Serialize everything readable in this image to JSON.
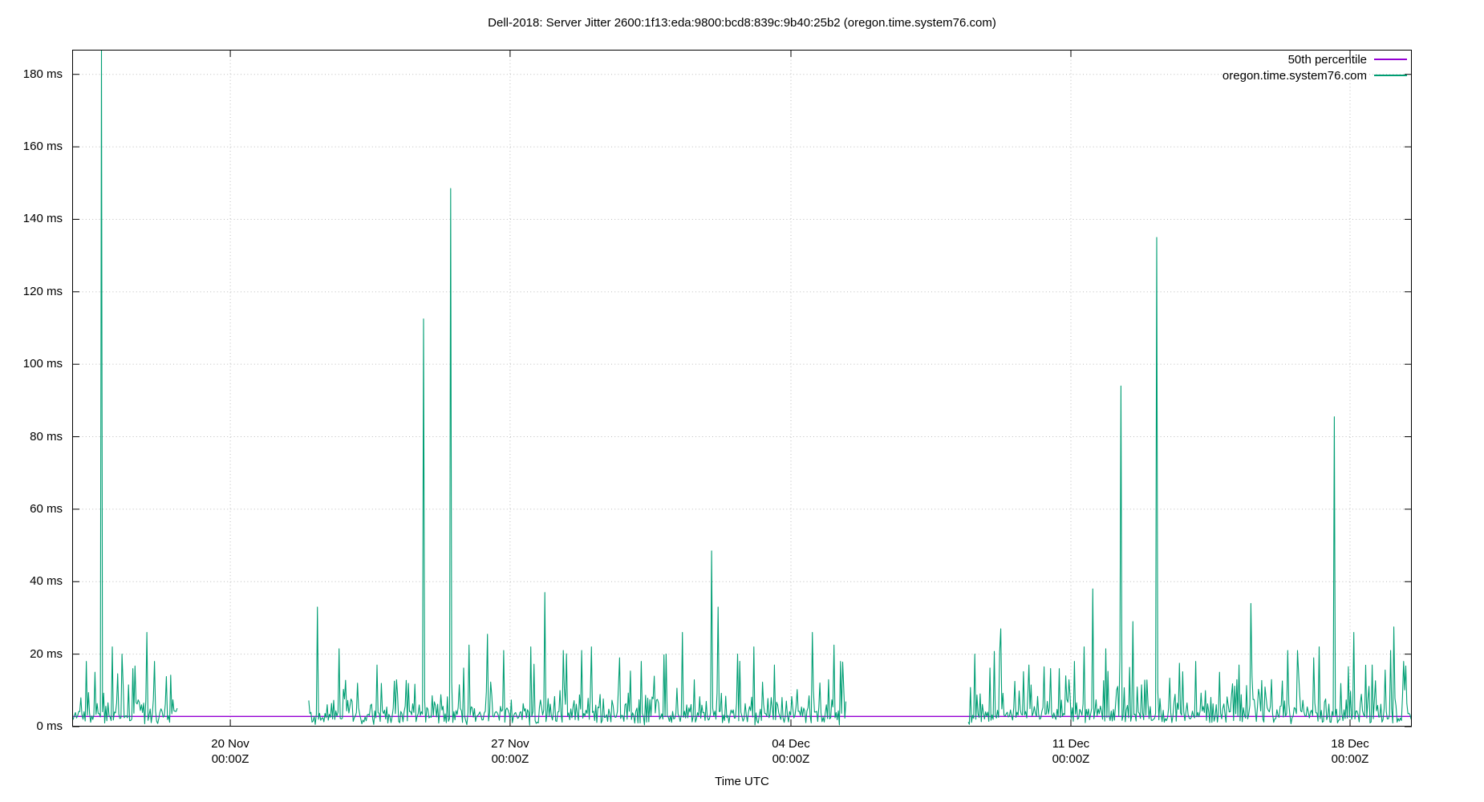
{
  "chart_data": {
    "type": "line",
    "title": "Dell-2018: Server Jitter 2600:1f13:eda:9800:bcd8:839c:9b40:25b2 (oregon.time.system76.com)",
    "xlabel": "Time UTC",
    "unit": "ms",
    "y_axis": {
      "min": 0,
      "max_visible": 186.8,
      "tick_step": 20,
      "tick_labels": [
        "0 ms",
        "20 ms",
        "40 ms",
        "60 ms",
        "80 ms",
        "100 ms",
        "120 ms",
        "140 ms",
        "160 ms",
        "180 ms"
      ],
      "grid": true
    },
    "x_axis": {
      "start_approx": "16 Nov 01:00Z",
      "end_approx": "19 Dec 13:00Z",
      "grid": true,
      "ticks": [
        {
          "line1": "20 Nov",
          "line2": "00:00Z",
          "frac": 0.118
        },
        {
          "line1": "27 Nov",
          "line2": "00:00Z",
          "frac": 0.3269
        },
        {
          "line1": "04 Dec",
          "line2": "00:00Z",
          "frac": 0.5365
        },
        {
          "line1": "11 Dec",
          "line2": "00:00Z",
          "frac": 0.7455
        },
        {
          "line1": "18 Dec",
          "line2": "00:00Z",
          "frac": 0.9539
        }
      ]
    },
    "legend": {
      "position": "top-right",
      "entries": [
        {
          "label": "50th percentile",
          "color": "#9400d3"
        },
        {
          "label": "oregon.time.system76.com",
          "color": "#009e73"
        }
      ]
    },
    "series": [
      {
        "name": "50th percentile",
        "type": "hline",
        "value_ms": 2.8,
        "color": "#9400d3",
        "spans": "full x range"
      },
      {
        "name": "oregon.time.system76.com",
        "type": "noisy-line",
        "color": "#009e73",
        "baseline_ms": {
          "typical_min": 0.8,
          "median": 2.8,
          "typical_max": 8,
          "frequent_minor_spikes_to": 22
        },
        "segments": [
          {
            "x_frac": [
              0.0,
              0.079
            ],
            "from": "16 Nov 01:00Z",
            "to": "18 Nov ~16:00Z"
          },
          {
            "x_frac": [
              0.1766,
              0.5778
            ],
            "from": "21 Nov ~23:00Z",
            "to": "05 Dec ~09:00Z"
          },
          {
            "x_frac": [
              0.6689,
              1.0
            ],
            "from": "08 Dec ~10:00Z",
            "to": "19 Dec 13:00Z"
          }
        ],
        "data_gaps": [
          {
            "from": "18 Nov ~16:00Z",
            "to": "21 Nov ~23:00Z",
            "x_frac": [
              0.079,
              0.1766
            ]
          },
          {
            "from": "05 Dec ~09:00Z",
            "to": "08 Dec ~10:00Z",
            "x_frac": [
              0.5778,
              0.6689
            ]
          }
        ],
        "spikes": [
          {
            "x_frac": 0.0108,
            "ms": 18
          },
          {
            "x_frac": 0.0168,
            "ms": 15
          },
          {
            "x_frac": 0.0222,
            "ms": 200,
            "clipped_above_axis": true,
            "time": "16 Nov ~19:00Z"
          },
          {
            "x_frac": 0.0299,
            "ms": 22
          },
          {
            "x_frac": 0.0371,
            "ms": 20
          },
          {
            "x_frac": 0.0449,
            "ms": 16
          },
          {
            "x_frac": 0.0557,
            "ms": 26,
            "time": "17 Nov ~22:00Z"
          },
          {
            "x_frac": 0.0617,
            "ms": 18
          },
          {
            "x_frac": 0.1832,
            "ms": 33,
            "time": "22 Nov ~04:00Z"
          },
          {
            "x_frac": 0.1994,
            "ms": 21.5
          },
          {
            "x_frac": 0.2275,
            "ms": 17
          },
          {
            "x_frac": 0.2623,
            "ms": 112.5,
            "time": "24 Nov ~20:00Z"
          },
          {
            "x_frac": 0.2826,
            "ms": 148.5,
            "time": "25 Nov ~12:00Z"
          },
          {
            "x_frac": 0.2964,
            "ms": 22.5
          },
          {
            "x_frac": 0.3102,
            "ms": 25.5
          },
          {
            "x_frac": 0.3222,
            "ms": 21
          },
          {
            "x_frac": 0.3425,
            "ms": 22
          },
          {
            "x_frac": 0.3527,
            "ms": 37,
            "time": "27 Nov ~20:00Z"
          },
          {
            "x_frac": 0.3665,
            "ms": 21
          },
          {
            "x_frac": 0.3802,
            "ms": 21
          },
          {
            "x_frac": 0.3874,
            "ms": 22
          },
          {
            "x_frac": 0.4084,
            "ms": 19
          },
          {
            "x_frac": 0.4251,
            "ms": 18
          },
          {
            "x_frac": 0.4431,
            "ms": 20
          },
          {
            "x_frac": 0.4557,
            "ms": 26
          },
          {
            "x_frac": 0.4772,
            "ms": 48.5,
            "time": "02 Dec ~00:00Z"
          },
          {
            "x_frac": 0.482,
            "ms": 33
          },
          {
            "x_frac": 0.497,
            "ms": 20
          },
          {
            "x_frac": 0.509,
            "ms": 22
          },
          {
            "x_frac": 0.5246,
            "ms": 17
          },
          {
            "x_frac": 0.5521,
            "ms": 26,
            "time": "04 Dec ~12:00Z"
          },
          {
            "x_frac": 0.5689,
            "ms": 22.5
          },
          {
            "x_frac": 0.5737,
            "ms": 18
          },
          {
            "x_frac": 0.6737,
            "ms": 20
          },
          {
            "x_frac": 0.6928,
            "ms": 27,
            "time": "09 Dec ~06:00Z"
          },
          {
            "x_frac": 0.7138,
            "ms": 17
          },
          {
            "x_frac": 0.7257,
            "ms": 16.5
          },
          {
            "x_frac": 0.7365,
            "ms": 16
          },
          {
            "x_frac": 0.7485,
            "ms": 18
          },
          {
            "x_frac": 0.7557,
            "ms": 22
          },
          {
            "x_frac": 0.7617,
            "ms": 38,
            "time": "11 Dec ~13:00Z"
          },
          {
            "x_frac": 0.7713,
            "ms": 21.5
          },
          {
            "x_frac": 0.7832,
            "ms": 94,
            "time": "12 Dec ~06:00Z"
          },
          {
            "x_frac": 0.7916,
            "ms": 29
          },
          {
            "x_frac": 0.8096,
            "ms": 135,
            "time": "13 Dec ~03:00Z"
          },
          {
            "x_frac": 0.8263,
            "ms": 17.5
          },
          {
            "x_frac": 0.8383,
            "ms": 18
          },
          {
            "x_frac": 0.8563,
            "ms": 15
          },
          {
            "x_frac": 0.8713,
            "ms": 17
          },
          {
            "x_frac": 0.8802,
            "ms": 34,
            "time": "15 Dec ~12:00Z"
          },
          {
            "x_frac": 0.8952,
            "ms": 13
          },
          {
            "x_frac": 0.9072,
            "ms": 21
          },
          {
            "x_frac": 0.915,
            "ms": 21
          },
          {
            "x_frac": 0.9269,
            "ms": 19
          },
          {
            "x_frac": 0.9311,
            "ms": 22
          },
          {
            "x_frac": 0.9425,
            "ms": 85.5,
            "time": "17 Dec ~14:00Z"
          },
          {
            "x_frac": 0.9563,
            "ms": 26
          },
          {
            "x_frac": 0.9701,
            "ms": 17
          },
          {
            "x_frac": 0.9838,
            "ms": 21
          },
          {
            "x_frac": 0.9868,
            "ms": 27.5
          },
          {
            "x_frac": 0.994,
            "ms": 18
          }
        ]
      }
    ],
    "colors": {
      "background": "#ffffff",
      "border": "#000000",
      "grid": "#bcbcbc",
      "percentile_line": "#9400d3",
      "data_line": "#009e73"
    }
  }
}
